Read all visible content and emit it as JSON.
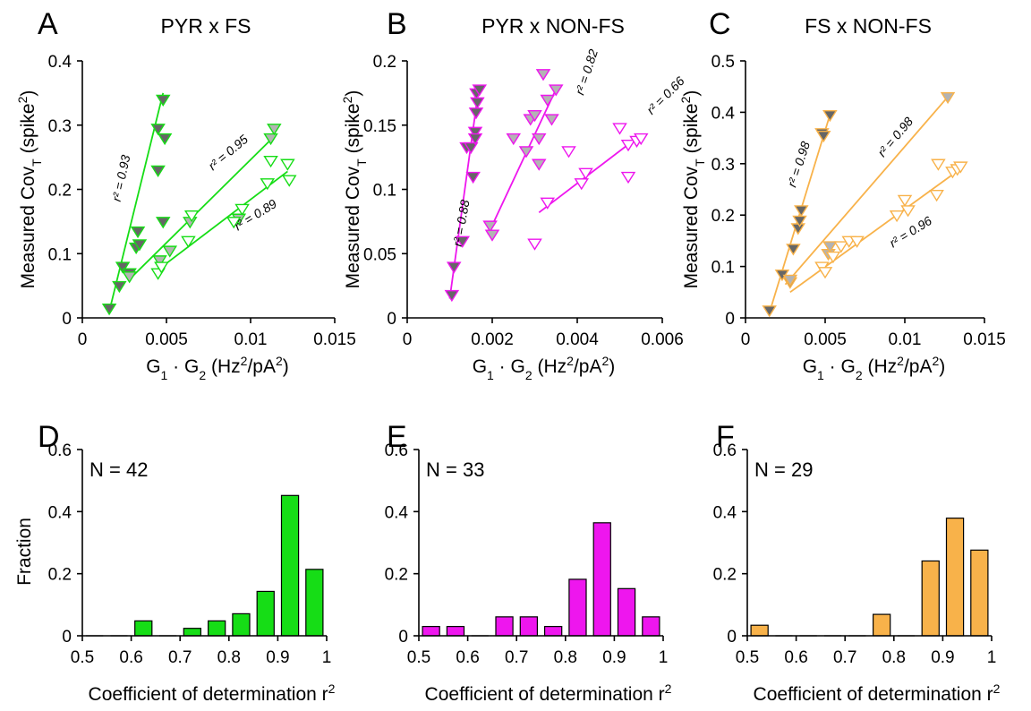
{
  "colors": {
    "green": "#16dd16",
    "magenta": "#ee16ee",
    "orange": "#f8b24a",
    "dark_fill": "#666666",
    "mid_fill": "#b3b3b3"
  },
  "scatter_common": {
    "ylabel": "Measured Cov",
    "ylabel_sub": "T",
    "ylabel_unit": " (spike",
    "ylabel_sup": "2",
    "ylabel_close": ")",
    "xlabel": {
      "g1": "G",
      "s1": "1",
      "dot": " · ",
      "g2": "G",
      "s2": "2",
      "u1": " (Hz",
      "p1": "2",
      "u2": "/pA",
      "p2": "2",
      "u3": ")"
    }
  },
  "hist_common": {
    "ylabel": "Fraction",
    "xlabel": "Coefficient of determination r",
    "xlabel_sup": "2",
    "xticks": [
      "0.5",
      "0.6",
      "0.7",
      "0.8",
      "0.9",
      "1"
    ],
    "yticks": [
      "0",
      "0.2",
      "0.4",
      "0.6"
    ]
  },
  "chart_data": [
    {
      "panel": "A",
      "title": "PYR x FS",
      "type": "scatter",
      "color": "#16dd16",
      "xlim": [
        0,
        0.015
      ],
      "ylim": [
        0,
        0.4
      ],
      "xticks": [
        "0",
        "0.005",
        "0.01",
        "0.015"
      ],
      "yticks": [
        "0",
        "0.1",
        "0.2",
        "0.3",
        "0.4"
      ],
      "series": [
        {
          "fill": "dark",
          "r2": "r² = 0.93",
          "line": [
            [
              0.0016,
              0.01
            ],
            [
              0.0048,
              0.35
            ]
          ],
          "points": [
            [
              0.0016,
              0.015
            ],
            [
              0.0022,
              0.05
            ],
            [
              0.0024,
              0.08
            ],
            [
              0.0028,
              0.07
            ],
            [
              0.0032,
              0.11
            ],
            [
              0.0033,
              0.135
            ],
            [
              0.0034,
              0.115
            ],
            [
              0.0045,
              0.23
            ],
            [
              0.0045,
              0.295
            ],
            [
              0.0048,
              0.34
            ],
            [
              0.0049,
              0.28
            ],
            [
              0.0048,
              0.15
            ]
          ]
        },
        {
          "fill": "mid",
          "r2": "r² = 0.95",
          "line": [
            [
              0.0028,
              0.06
            ],
            [
              0.0115,
              0.285
            ]
          ],
          "points": [
            [
              0.0028,
              0.065
            ],
            [
              0.0046,
              0.09
            ],
            [
              0.0052,
              0.105
            ],
            [
              0.0064,
              0.15
            ],
            [
              0.0093,
              0.155
            ],
            [
              0.0112,
              0.28
            ],
            [
              0.0114,
              0.295
            ]
          ]
        },
        {
          "fill": "open",
          "r2": "r² = 0.89",
          "line": [
            [
              0.0045,
              0.075
            ],
            [
              0.0122,
              0.228
            ]
          ],
          "points": [
            [
              0.0045,
              0.07
            ],
            [
              0.0047,
              0.08
            ],
            [
              0.0063,
              0.12
            ],
            [
              0.0065,
              0.16
            ],
            [
              0.009,
              0.15
            ],
            [
              0.0095,
              0.17
            ],
            [
              0.011,
              0.21
            ],
            [
              0.0112,
              0.245
            ],
            [
              0.0122,
              0.24
            ],
            [
              0.0123,
              0.215
            ]
          ]
        }
      ]
    },
    {
      "panel": "B",
      "title": "PYR x NON-FS",
      "type": "scatter",
      "color": "#ee16ee",
      "xlim": [
        0,
        0.006
      ],
      "ylim": [
        0,
        0.2
      ],
      "xticks": [
        "0",
        "0.002",
        "0.004",
        "0.006"
      ],
      "yticks": [
        "0",
        "0.05",
        "0.1",
        "0.15",
        "0.2"
      ],
      "series": [
        {
          "fill": "dark",
          "r2": "r² = 0.88",
          "line": [
            [
              0.001,
              0.015
            ],
            [
              0.00168,
              0.178
            ]
          ],
          "points": [
            [
              0.00105,
              0.018
            ],
            [
              0.0011,
              0.04
            ],
            [
              0.0013,
              0.06
            ],
            [
              0.0014,
              0.133
            ],
            [
              0.0015,
              0.133
            ],
            [
              0.00155,
              0.11
            ],
            [
              0.0016,
              0.145
            ],
            [
              0.00162,
              0.16
            ],
            [
              0.00163,
              0.175
            ],
            [
              0.00165,
              0.168
            ],
            [
              0.0017,
              0.178
            ],
            [
              0.0016,
              0.14
            ]
          ]
        },
        {
          "fill": "mid",
          "r2": "r² = 0.82",
          "line": [
            [
              0.0019,
              0.065
            ],
            [
              0.0035,
              0.178
            ]
          ],
          "points": [
            [
              0.00195,
              0.072
            ],
            [
              0.002,
              0.065
            ],
            [
              0.0025,
              0.14
            ],
            [
              0.0028,
              0.13
            ],
            [
              0.0029,
              0.155
            ],
            [
              0.003,
              0.158
            ],
            [
              0.0031,
              0.14
            ],
            [
              0.0032,
              0.19
            ],
            [
              0.0033,
              0.17
            ],
            [
              0.0034,
              0.155
            ],
            [
              0.0035,
              0.178
            ],
            [
              0.0031,
              0.12
            ]
          ]
        },
        {
          "fill": "open",
          "r2": "r² = 0.66",
          "line": [
            [
              0.0031,
              0.082
            ],
            [
              0.0054,
              0.14
            ]
          ],
          "points": [
            [
              0.003,
              0.058
            ],
            [
              0.0033,
              0.09
            ],
            [
              0.0038,
              0.13
            ],
            [
              0.0041,
              0.105
            ],
            [
              0.0042,
              0.113
            ],
            [
              0.005,
              0.148
            ],
            [
              0.0052,
              0.11
            ],
            [
              0.0052,
              0.135
            ],
            [
              0.0054,
              0.138
            ],
            [
              0.0055,
              0.14
            ]
          ]
        }
      ]
    },
    {
      "panel": "C",
      "title": "FS x NON-FS",
      "type": "scatter",
      "color": "#f8b24a",
      "xlim": [
        0,
        0.015
      ],
      "ylim": [
        0,
        0.5
      ],
      "xticks": [
        "0",
        "0.005",
        "0.01",
        "0.015"
      ],
      "yticks": [
        "0",
        "0.1",
        "0.2",
        "0.3",
        "0.4",
        "0.5"
      ],
      "series": [
        {
          "fill": "dark",
          "r2": "r² = 0.98",
          "line": [
            [
              0.0015,
              0.01
            ],
            [
              0.0053,
              0.395
            ]
          ],
          "points": [
            [
              0.0015,
              0.015
            ],
            [
              0.0023,
              0.085
            ],
            [
              0.0028,
              0.07
            ],
            [
              0.003,
              0.135
            ],
            [
              0.0033,
              0.175
            ],
            [
              0.0034,
              0.19
            ],
            [
              0.0035,
              0.21
            ],
            [
              0.0048,
              0.36
            ],
            [
              0.0049,
              0.355
            ],
            [
              0.0053,
              0.395
            ]
          ]
        },
        {
          "fill": "mid",
          "r2": "r² = 0.98",
          "line": [
            [
              0.0025,
              0.065
            ],
            [
              0.0127,
              0.43
            ]
          ],
          "points": [
            [
              0.0028,
              0.075
            ],
            [
              0.0052,
              0.125
            ],
            [
              0.0053,
              0.14
            ],
            [
              0.0127,
              0.43
            ]
          ]
        },
        {
          "fill": "open",
          "r2": "r² = 0.96",
          "line": [
            [
              0.0028,
              0.05
            ],
            [
              0.0135,
              0.29
            ]
          ],
          "points": [
            [
              0.0048,
              0.1
            ],
            [
              0.005,
              0.09
            ],
            [
              0.0055,
              0.12
            ],
            [
              0.006,
              0.14
            ],
            [
              0.0065,
              0.15
            ],
            [
              0.007,
              0.15
            ],
            [
              0.0095,
              0.2
            ],
            [
              0.01,
              0.23
            ],
            [
              0.0102,
              0.21
            ],
            [
              0.012,
              0.24
            ],
            [
              0.0121,
              0.3
            ],
            [
              0.013,
              0.285
            ],
            [
              0.0133,
              0.29
            ],
            [
              0.0135,
              0.295
            ]
          ]
        }
      ]
    },
    {
      "panel": "D",
      "type": "bar",
      "color": "#16dd16",
      "n_label": "N = 42",
      "xlim": [
        0.5,
        1.0
      ],
      "ylim": [
        0,
        0.6
      ],
      "bins": [
        0.525,
        0.575,
        0.625,
        0.675,
        0.725,
        0.775,
        0.825,
        0.875,
        0.925,
        0.975
      ],
      "values": [
        0,
        0,
        0.048,
        0,
        0.024,
        0.048,
        0.071,
        0.143,
        0.452,
        0.214
      ]
    },
    {
      "panel": "E",
      "type": "bar",
      "color": "#ee16ee",
      "n_label": "N = 33",
      "xlim": [
        0.5,
        1.0
      ],
      "ylim": [
        0,
        0.6
      ],
      "bins": [
        0.525,
        0.575,
        0.625,
        0.675,
        0.725,
        0.775,
        0.825,
        0.875,
        0.925,
        0.975
      ],
      "values": [
        0.03,
        0.03,
        0,
        0.061,
        0.061,
        0.03,
        0.182,
        0.364,
        0.152,
        0.061
      ]
    },
    {
      "panel": "F",
      "type": "bar",
      "color": "#f8b24a",
      "n_label": "N = 29",
      "xlim": [
        0.5,
        1.0
      ],
      "ylim": [
        0,
        0.6
      ],
      "bins": [
        0.525,
        0.575,
        0.625,
        0.675,
        0.725,
        0.775,
        0.825,
        0.875,
        0.925,
        0.975
      ],
      "values": [
        0.034,
        0,
        0,
        0,
        0,
        0.069,
        0,
        0.241,
        0.379,
        0.276
      ]
    }
  ]
}
